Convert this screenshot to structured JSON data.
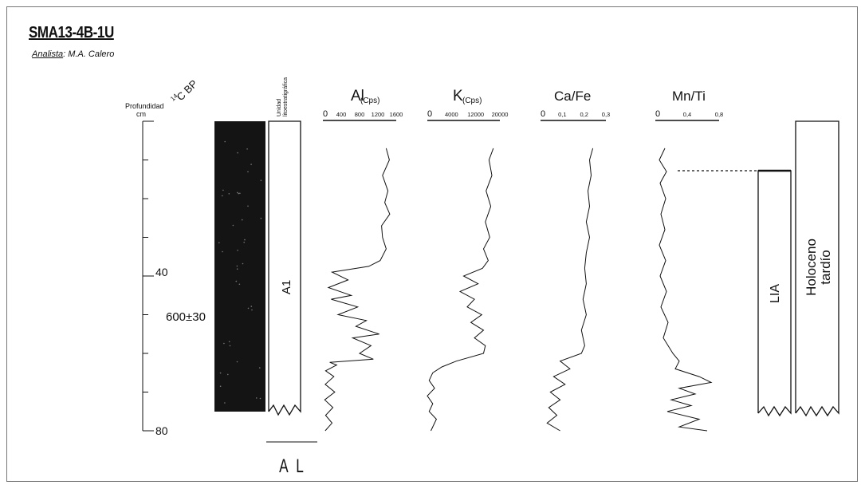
{
  "header": {
    "title": "SMA13-4B-1U",
    "analyst_label": "Analista",
    "analyst_name": ": M.A. Calero"
  },
  "depth_axis": {
    "label": "Profundidad",
    "unit": "cm",
    "ticks": [
      {
        "depth": 40,
        "label": "40"
      },
      {
        "depth": 80,
        "label": "80"
      }
    ],
    "range": [
      0,
      80
    ]
  },
  "age_column": {
    "header_super": "14",
    "header": "C BP",
    "samples": [
      {
        "depth": 60,
        "label": "600±30"
      }
    ]
  },
  "lithology": {
    "header": "Unidad litoestratigráfica",
    "header_line1": "Unidad",
    "header_line2": "litoestratigráfica",
    "unit_label": "A1",
    "bottom_label": "A L"
  },
  "zones": [
    {
      "label": "LIA",
      "top_depth": 13
    },
    {
      "label_line1": "Holoceno",
      "label_line2": "tardío",
      "top_depth": 0
    }
  ],
  "chart_data": [
    {
      "type": "line",
      "title": "Al",
      "subtitle": "(Cps)",
      "orientation": "vertical-depth",
      "xlim": [
        0,
        1600
      ],
      "xticks": [
        "0",
        "400",
        "800",
        "1200",
        "1600"
      ],
      "y_name": "depth_cm",
      "series": [
        {
          "depth": [
            7,
            10,
            14,
            18,
            21,
            24,
            27,
            30,
            33,
            36,
            37.5,
            39,
            41,
            43,
            45,
            46,
            48,
            50,
            51.5,
            53,
            55,
            56,
            58,
            60,
            61.5,
            62.3,
            63,
            64.5,
            66,
            68,
            70,
            72,
            74,
            76,
            78,
            80
          ],
          "values": [
            1380,
            1450,
            1300,
            1420,
            1350,
            1460,
            1280,
            1300,
            1380,
            1250,
            1000,
            200,
            550,
            120,
            620,
            180,
            760,
            330,
            950,
            720,
            1230,
            650,
            1050,
            800,
            1100,
            150,
            300,
            60,
            240,
            50,
            260,
            40,
            220,
            60,
            200,
            50
          ]
        }
      ]
    },
    {
      "type": "line",
      "title": "K",
      "subtitle": "(Cps)",
      "orientation": "vertical-depth",
      "xlim": [
        0,
        20000
      ],
      "xticks": [
        "0",
        "4000",
        "12000",
        "20000"
      ],
      "y_name": "depth_cm",
      "series": [
        {
          "depth": [
            7,
            10,
            14,
            18,
            22,
            26,
            30,
            33,
            36,
            38,
            40,
            42,
            44,
            46,
            48,
            50,
            52,
            54,
            56,
            58,
            60,
            62,
            63.5,
            65,
            67,
            69,
            71,
            73,
            75,
            77,
            80
          ],
          "values": [
            18200,
            17000,
            17800,
            16200,
            17500,
            16000,
            17200,
            15500,
            16800,
            15200,
            10000,
            14000,
            9000,
            13000,
            11000,
            15000,
            12000,
            15500,
            13000,
            16000,
            15500,
            8000,
            4000,
            1500,
            500,
            2000,
            0,
            1500,
            500,
            2500,
            1000
          ]
        }
      ]
    },
    {
      "type": "line",
      "title": "Ca/Fe",
      "orientation": "vertical-depth",
      "xlim": [
        0,
        0.4
      ],
      "xticks": [
        "0",
        "0,1",
        "0,2",
        "0,3"
      ],
      "y_name": "depth_cm",
      "series": [
        {
          "depth": [
            7,
            10,
            14,
            18,
            22,
            26,
            30,
            34,
            38,
            42,
            46,
            50,
            54,
            58,
            60,
            62,
            64,
            66,
            68,
            70,
            72,
            74,
            76,
            78,
            80
          ],
          "values": [
            0.32,
            0.3,
            0.31,
            0.29,
            0.3,
            0.28,
            0.3,
            0.28,
            0.27,
            0.28,
            0.26,
            0.28,
            0.25,
            0.27,
            0.25,
            0.12,
            0.18,
            0.08,
            0.15,
            0.06,
            0.12,
            0.05,
            0.1,
            0.04,
            0.12
          ]
        }
      ]
    },
    {
      "type": "line",
      "title": "Mn/Ti",
      "orientation": "vertical-depth",
      "xlim": [
        0,
        0.8
      ],
      "xticks": [
        "0",
        "0,4",
        "0,8"
      ],
      "y_name": "depth_cm",
      "series": [
        {
          "depth": [
            7,
            10,
            13,
            16,
            20,
            24,
            28,
            32,
            36,
            40,
            44,
            48,
            52,
            56,
            60,
            62,
            64,
            66,
            67.5,
            69,
            70.5,
            72,
            73.5,
            75,
            77,
            79,
            80
          ],
          "values": [
            0.12,
            0.05,
            0.14,
            0.06,
            0.13,
            0.07,
            0.12,
            0.05,
            0.13,
            0.06,
            0.14,
            0.07,
            0.16,
            0.1,
            0.22,
            0.3,
            0.25,
            0.55,
            0.7,
            0.3,
            0.5,
            0.2,
            0.45,
            0.15,
            0.55,
            0.3,
            0.65
          ]
        }
      ]
    }
  ]
}
